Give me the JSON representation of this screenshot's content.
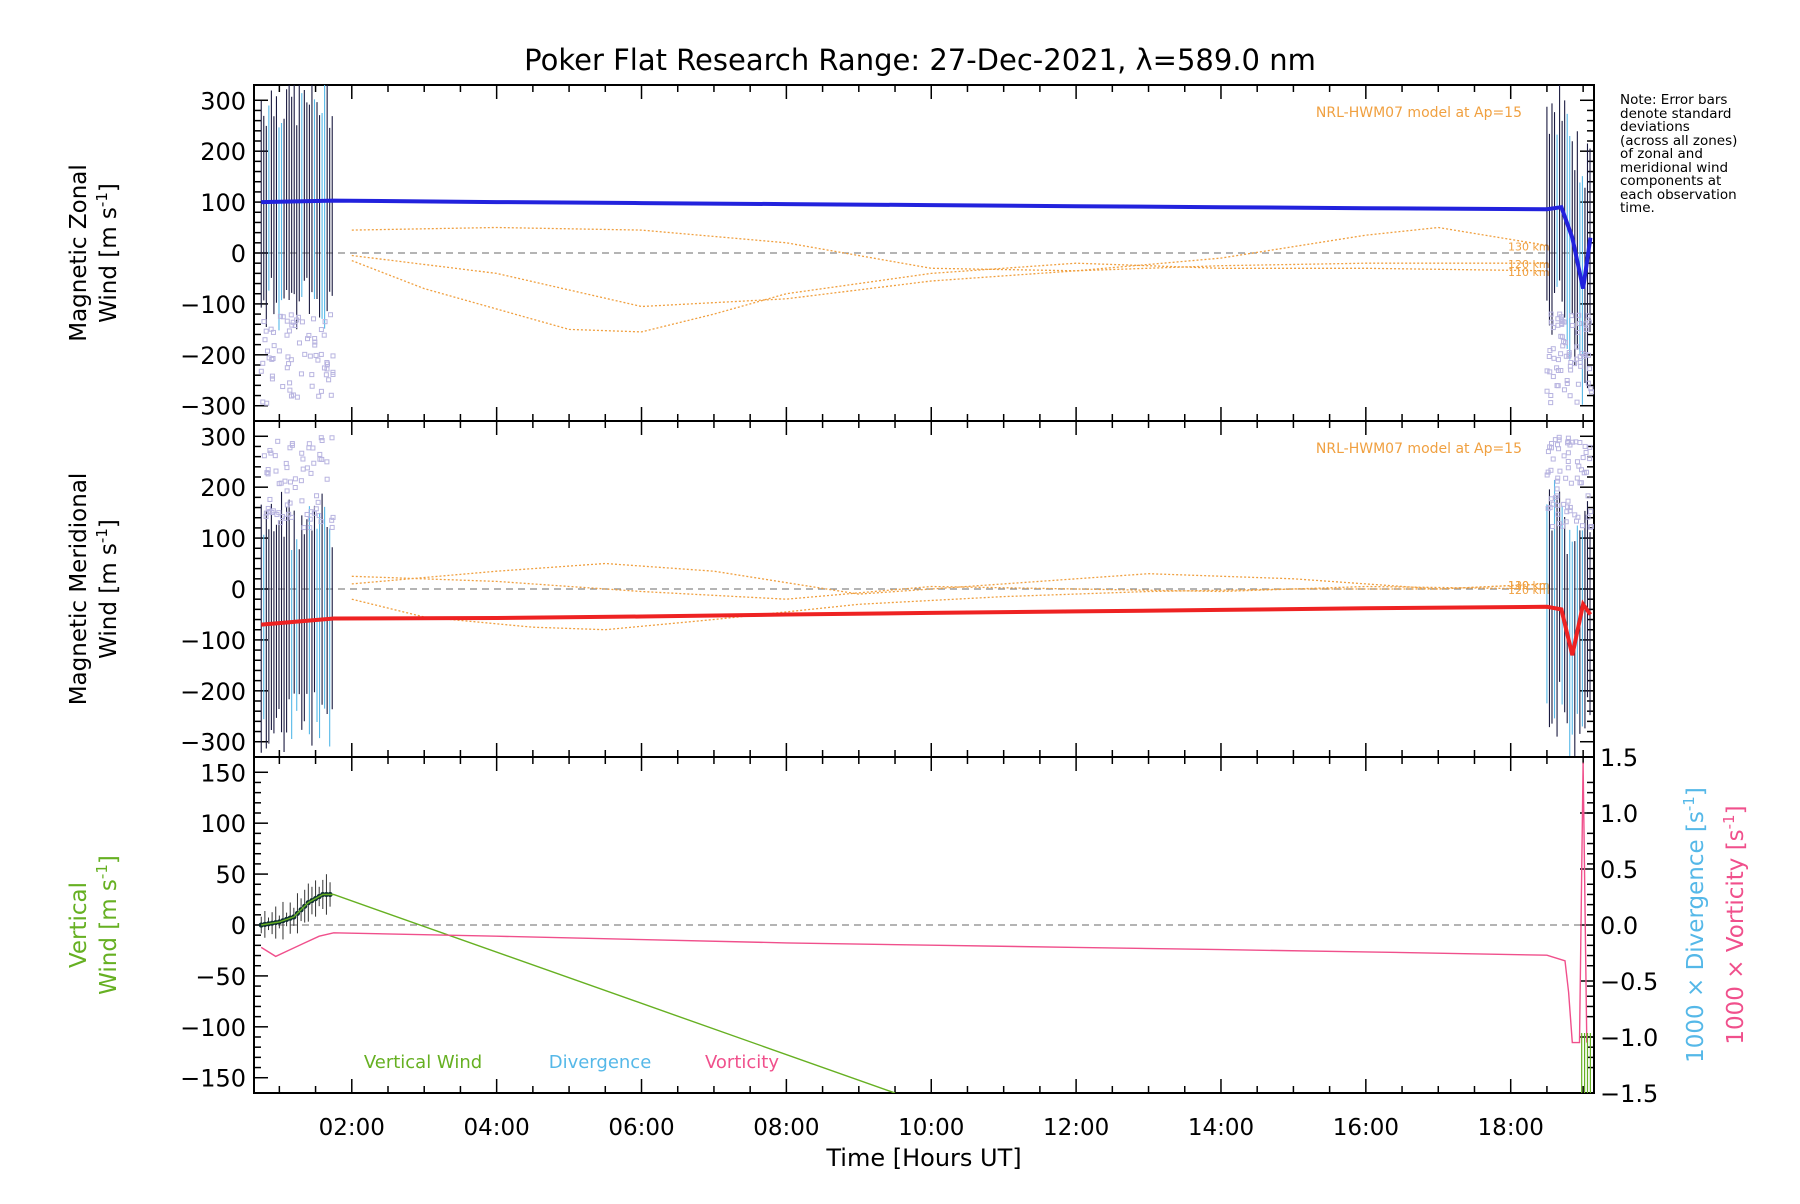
{
  "title": "Poker Flat Research Range: 27-Dec-2021, λ=589.0 nm",
  "note": [
    "Note: Error bars",
    "denote standard",
    "deviations",
    "(across all zones)",
    "of zonal and",
    "meridional wind",
    "components at",
    "each observation",
    "time."
  ],
  "colors": {
    "zonal": "#2222dd",
    "meridional": "#ee2222",
    "model": "#f0a040",
    "cyan": "#55b8e8",
    "lavender": "#b8b4e0",
    "vertical": "#66b022",
    "vorticity": "#f0508c",
    "errorbar": "#1a1a40"
  },
  "chart_data": [
    {
      "type": "line",
      "id": "zonal",
      "ylabel_line1": "Magnetic Zonal",
      "ylabel_line2": "Wind [m s",
      "ylabel_sup": "-1",
      "ylabel_close": "]",
      "ylim": [
        -330,
        330
      ],
      "yticks": [
        300,
        200,
        100,
        0,
        -100,
        -200,
        -300
      ],
      "model_label": "NRL-HWM07 model at Ap=15",
      "model_series": [
        {
          "name": "130 km",
          "x": [
            2,
            4,
            6,
            8,
            10,
            12,
            14,
            16,
            17,
            18.5
          ],
          "y": [
            45,
            50,
            45,
            20,
            -30,
            -35,
            -10,
            35,
            50,
            15
          ]
        },
        {
          "name": "120 km",
          "x": [
            2,
            4,
            6,
            8,
            10,
            12,
            14,
            16,
            18.5
          ],
          "y": [
            -5,
            -40,
            -105,
            -90,
            -55,
            -35,
            -25,
            -20,
            -20
          ]
        },
        {
          "name": "110 km",
          "x": [
            2,
            3,
            4,
            5,
            6,
            7,
            8,
            10,
            12,
            14,
            16,
            18.5
          ],
          "y": [
            -15,
            -70,
            -110,
            -150,
            -155,
            -120,
            -80,
            -40,
            -20,
            -30,
            -30,
            -35
          ]
        }
      ],
      "series": [
        {
          "name": "zonal wind",
          "x": [
            0.75,
            1.75,
            4,
            6,
            8,
            10,
            12,
            14,
            16,
            18.5,
            18.7,
            18.85,
            19.0,
            19.1
          ],
          "y": [
            100,
            103,
            100,
            98,
            96,
            94,
            92,
            90,
            88,
            86,
            90,
            30,
            -70,
            30
          ]
        }
      ]
    },
    {
      "type": "line",
      "id": "meridional",
      "ylabel_line1": "Magnetic Meridional",
      "ylabel_line2": "Wind [m s",
      "ylabel_sup": "-1",
      "ylabel_close": "]",
      "ylim": [
        -330,
        330
      ],
      "yticks": [
        300,
        200,
        100,
        0,
        -100,
        -200,
        -300
      ],
      "model_label": "NRL-HWM07 model at Ap=15",
      "model_series": [
        {
          "name": "130 km",
          "x": [
            2,
            4,
            5.5,
            7,
            9,
            11,
            13,
            15,
            17,
            18.5
          ],
          "y": [
            10,
            35,
            50,
            35,
            -10,
            10,
            30,
            20,
            0,
            10
          ]
        },
        {
          "name": "120 km",
          "x": [
            2,
            4,
            6,
            8,
            10,
            12,
            14,
            16,
            18.5
          ],
          "y": [
            25,
            15,
            -5,
            -20,
            5,
            0,
            -5,
            5,
            0
          ]
        },
        {
          "name": "110 km",
          "x": [
            2,
            3,
            4.5,
            5.5,
            7,
            9,
            11,
            13,
            15,
            17,
            18.5
          ],
          "y": [
            -20,
            -55,
            -75,
            -80,
            -60,
            -30,
            -15,
            -5,
            0,
            0,
            10
          ]
        }
      ],
      "series": [
        {
          "name": "meridional wind",
          "x": [
            0.75,
            1.75,
            4,
            6,
            8,
            10,
            12,
            14,
            16,
            18.5,
            18.7,
            18.85,
            19.0,
            19.1
          ],
          "y": [
            -70,
            -58,
            -57,
            -54,
            -50,
            -47,
            -44,
            -41,
            -38,
            -35,
            -40,
            -130,
            -30,
            -50
          ]
        }
      ]
    },
    {
      "type": "line",
      "id": "vertical",
      "ylabel_line1": "Vertical",
      "ylabel_line2": "Wind [m s",
      "ylabel_sup": "-1",
      "ylabel_close": "]",
      "xlabel": "Time [Hours UT]",
      "xlim": [
        0.65,
        19.15
      ],
      "xticks": [
        2,
        4,
        6,
        8,
        10,
        12,
        14,
        16,
        18
      ],
      "xticklabels": [
        "02:00",
        "04:00",
        "06:00",
        "08:00",
        "10:00",
        "12:00",
        "14:00",
        "16:00",
        "18:00"
      ],
      "ylim": [
        -165,
        165
      ],
      "yticks": [
        150,
        100,
        50,
        0,
        -50,
        -100,
        -150
      ],
      "right_axis": {
        "label_divergence": "1000 × Divergence [s",
        "label_vorticity": "1000 × Vorticity [s",
        "sup": "-1",
        "close": "]",
        "ylim": [
          -1.5,
          1.5
        ],
        "ticks": [
          1.5,
          1.0,
          0.5,
          0.0,
          -0.5,
          -1.0,
          -1.5
        ],
        "ticklabels": [
          "1.5",
          "1.0",
          "0.5",
          "0.0",
          "−0.5",
          "−1.0",
          "−1.5"
        ]
      },
      "legend": [
        "Vertical Wind",
        "Divergence",
        "Vorticity"
      ],
      "series": [
        {
          "name": "Vertical Wind",
          "x": [
            0.75,
            1.0,
            1.2,
            1.4,
            1.6,
            1.75,
            9.5
          ],
          "y": [
            0,
            3,
            8,
            22,
            30,
            30,
            -165
          ]
        },
        {
          "name": "Vorticity",
          "x": [
            0.75,
            0.95,
            1.15,
            1.35,
            1.55,
            1.75,
            4,
            6,
            8,
            10,
            12,
            14,
            16,
            18.5,
            18.75,
            18.8,
            18.85,
            18.95,
            19.0,
            19.05
          ],
          "y": [
            -0.2,
            -0.28,
            -0.22,
            -0.16,
            -0.1,
            -0.07,
            -0.1,
            -0.13,
            -0.16,
            -0.18,
            -0.2,
            -0.22,
            -0.24,
            -0.27,
            -0.32,
            -0.6,
            -1.05,
            -1.05,
            1.45,
            -1.05
          ]
        }
      ]
    }
  ]
}
